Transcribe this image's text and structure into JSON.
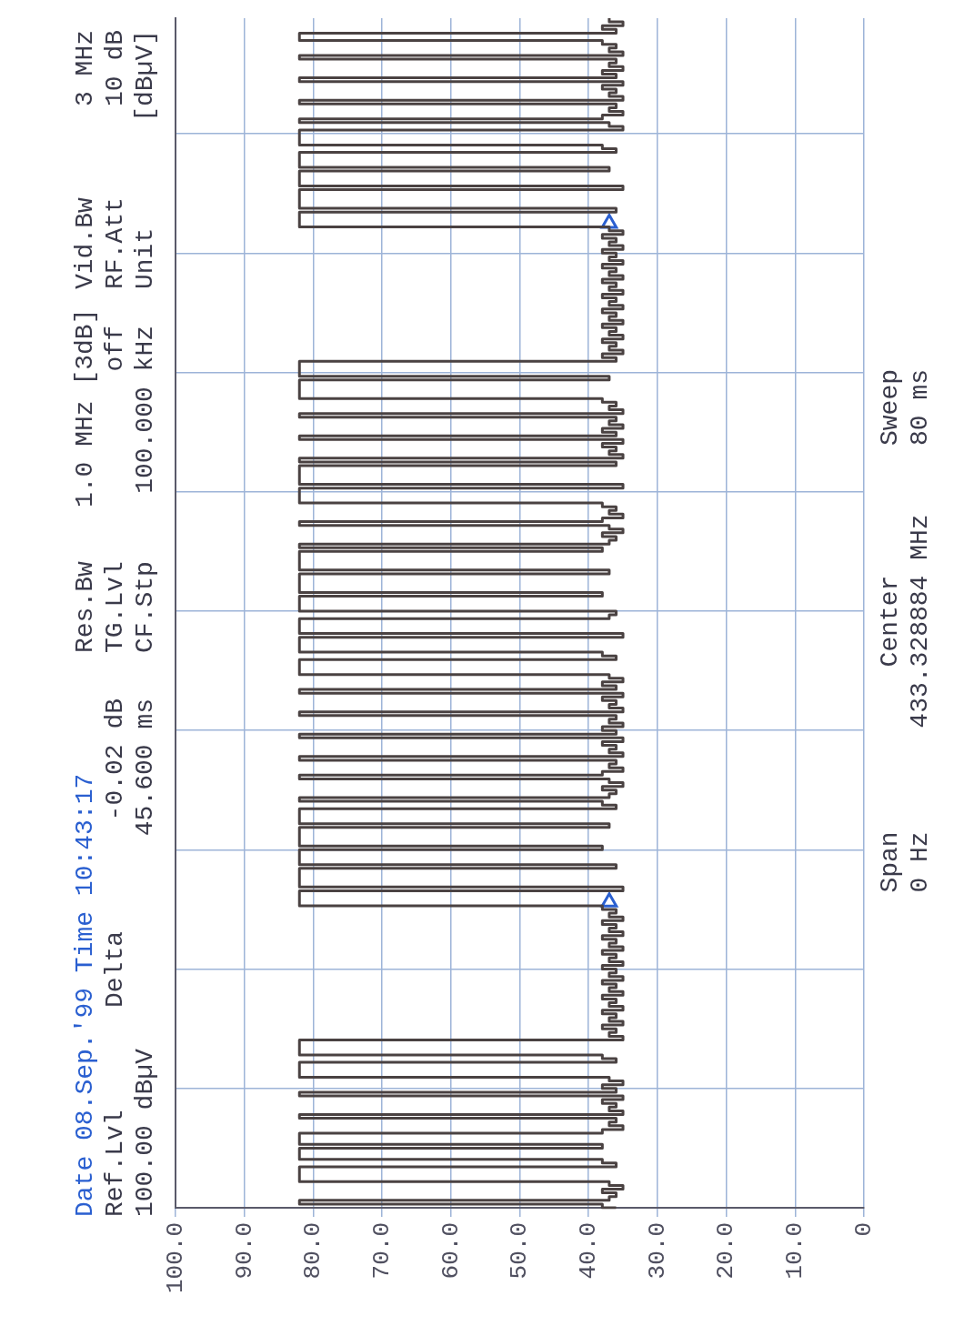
{
  "chart_data": {
    "type": "step",
    "annotations": [
      "Date 08.Sep.'99  Time 10:43:17",
      "Ref.Lvl",
      "100.00 dBµV",
      "Delta",
      "-0.02 dB",
      "45.600 ms",
      "Res.Bw",
      "1.0 MHz [3dB]",
      "TG.Lvl",
      "off",
      "CF.Stp",
      "100.000 kHz",
      "Vid.Bw",
      "3 MHz",
      "RF.Att",
      "10 dB",
      "Unit",
      "[dBµV]",
      "Span",
      "0 Hz",
      "Center",
      "433.328884 MHz",
      "Sweep",
      "80 ms"
    ],
    "orientation": "horizontal",
    "categories": [
      null,
      null,
      null,
      null,
      null,
      null,
      null,
      null,
      null,
      null,
      null,
      null,
      null,
      null,
      null,
      null,
      null,
      null,
      null,
      null,
      null,
      null,
      null,
      null,
      null,
      null,
      null,
      null,
      null,
      null,
      null,
      null,
      null,
      null,
      null,
      null,
      null,
      null,
      null,
      null,
      null,
      null,
      null,
      null,
      null,
      null,
      null,
      null,
      null,
      null,
      null,
      null,
      null,
      null,
      null,
      null,
      null,
      null,
      null,
      null,
      null,
      null,
      null,
      null,
      null,
      null,
      null,
      null,
      null,
      null,
      null,
      null,
      null,
      null,
      null,
      null,
      null,
      null,
      null,
      null,
      null,
      null,
      null,
      null,
      null,
      null,
      null,
      null,
      null,
      null,
      null,
      null,
      null,
      null,
      null,
      null,
      null,
      null,
      null,
      null,
      null,
      null,
      null,
      null,
      null,
      null,
      null,
      null,
      null,
      null,
      null,
      null,
      null,
      null,
      null,
      null,
      null,
      null,
      null,
      null,
      null,
      null,
      null,
      null,
      null,
      null,
      null,
      null,
      null,
      null,
      null,
      null,
      null,
      null,
      null,
      null,
      null,
      null,
      null,
      null,
      null,
      null,
      null,
      null,
      null,
      null,
      null,
      null,
      null,
      null,
      null,
      null,
      null,
      null,
      null,
      null,
      null,
      null,
      null,
      null,
      null,
      null,
      null,
      null,
      null,
      null,
      null,
      null,
      null,
      null,
      null,
      null,
      null,
      null,
      null,
      null,
      null,
      null,
      null,
      null,
      null,
      null,
      null,
      null,
      null,
      null,
      null,
      null,
      null,
      null,
      null,
      null,
      null,
      null,
      null,
      null,
      null,
      null,
      null,
      null,
      null,
      null,
      null,
      null,
      null,
      null,
      null,
      null,
      null,
      null,
      null,
      null,
      null,
      null,
      null,
      null,
      null,
      null,
      null,
      null,
      null,
      null,
      null,
      null,
      null,
      null,
      null,
      null,
      null,
      null,
      null,
      null,
      null,
      null,
      null,
      null,
      null,
      null,
      null,
      null,
      null,
      null,
      null,
      null,
      null,
      null,
      null,
      null,
      null,
      null,
      null,
      null,
      null,
      null,
      null,
      null,
      null,
      null,
      null,
      null,
      null,
      null,
      null,
      null,
      null,
      null,
      null,
      null,
      null,
      null,
      null,
      null,
      null,
      null,
      null,
      null,
      null,
      null,
      null,
      null,
      null,
      null,
      null,
      null,
      null,
      null,
      null,
      null,
      null,
      null,
      null,
      null,
      null,
      null,
      null,
      null,
      null,
      null,
      null,
      null,
      null,
      null,
      null,
      null,
      null,
      null,
      null,
      null,
      null,
      null,
      null,
      null,
      null,
      null,
      null,
      null,
      null,
      null,
      null,
      null
    ],
    "xlim": [
      100,
      0
    ],
    "xticks": [
      {
        "value": 100,
        "label": "100.0"
      },
      {
        "value": 90,
        "label": "90.0"
      },
      {
        "value": 80,
        "label": "80.0"
      },
      {
        "value": 70,
        "label": "70.0"
      },
      {
        "value": 60,
        "label": "60.0"
      },
      {
        "value": 50,
        "label": "50.0"
      },
      {
        "value": 40,
        "label": "40.0"
      },
      {
        "value": 30,
        "label": "30.0"
      },
      {
        "value": 20,
        "label": "20.0"
      },
      {
        "value": 10,
        "label": "10.0"
      },
      {
        "value": 0,
        "label": "0"
      }
    ],
    "tick_labels": "x",
    "grid": true,
    "series": [
      {
        "type": "step",
        "color": "#4a4242",
        "values": [
          37,
          35,
          38,
          36,
          82,
          82,
          38,
          36,
          37,
          35,
          82,
          36,
          37,
          35,
          38,
          36,
          82,
          35,
          38,
          36,
          37,
          35,
          82,
          36,
          37,
          35,
          38,
          82,
          37,
          35,
          82,
          82,
          82,
          82,
          38,
          36,
          82,
          82,
          82,
          82,
          37,
          82,
          82,
          82,
          82,
          35,
          82,
          82,
          82,
          82,
          82,
          36,
          82,
          82,
          82,
          82,
          37,
          35,
          38,
          36,
          37,
          35,
          38,
          36,
          37,
          35,
          38,
          36,
          37,
          35,
          38,
          36,
          37,
          35,
          38,
          36,
          37,
          35,
          38,
          36,
          37,
          35,
          38,
          36,
          37,
          35,
          38,
          36,
          37,
          35,
          38,
          36,
          82,
          82,
          82,
          82,
          37,
          82,
          82,
          82,
          82,
          82,
          38,
          36,
          37,
          35,
          82,
          36,
          37,
          35,
          38,
          36,
          82,
          35,
          38,
          36,
          37,
          35,
          82,
          36,
          82,
          82,
          82,
          82,
          82,
          35,
          82,
          82,
          82,
          82,
          38,
          36,
          37,
          35,
          38,
          82,
          37,
          35,
          38,
          36,
          37,
          82,
          38,
          82,
          82,
          82,
          82,
          82,
          37,
          82,
          82,
          82,
          82,
          82,
          38,
          82,
          82,
          82,
          82,
          36,
          37,
          82,
          82,
          82,
          82,
          35,
          82,
          82,
          82,
          82,
          38,
          36,
          82,
          82,
          82,
          82,
          37,
          35,
          38,
          36,
          82,
          35,
          38,
          36,
          37,
          35,
          82,
          36,
          37,
          35,
          38,
          36,
          82,
          35,
          38,
          36,
          37,
          35,
          82,
          36,
          37,
          35,
          38,
          82,
          37,
          35,
          38,
          36,
          37,
          82,
          38,
          36,
          82,
          82,
          82,
          82,
          37,
          82,
          82,
          82,
          82,
          82,
          38,
          82,
          82,
          82,
          82,
          36,
          82,
          82,
          82,
          82,
          82,
          35,
          82,
          82,
          82,
          82,
          38,
          36,
          37,
          35,
          38,
          36,
          37,
          35,
          38,
          36,
          37,
          35,
          38,
          36,
          37,
          35,
          38,
          36,
          37,
          35,
          38,
          36,
          37,
          35,
          38,
          36,
          37,
          35,
          38,
          36,
          37,
          35,
          38,
          36,
          37,
          35,
          82,
          82,
          82,
          82,
          38,
          36,
          82,
          82,
          82,
          82,
          37,
          35,
          38,
          36,
          82,
          35,
          38,
          36,
          37,
          35,
          82,
          36,
          37,
          35,
          38,
          82,
          82,
          82,
          38,
          82,
          82,
          82,
          38,
          36,
          82,
          82,
          82,
          82,
          37,
          35,
          38,
          36,
          37,
          82,
          38,
          36
        ]
      },
      {
        "type": "scatter",
        "color": "#2a5fd0",
        "marker": "triangle",
        "values": [
          null,
          null,
          null,
          null,
          null,
          null,
          null,
          null,
          null,
          null,
          null,
          null,
          null,
          null,
          null,
          null,
          null,
          null,
          null,
          null,
          null,
          null,
          null,
          null,
          null,
          null,
          null,
          null,
          null,
          null,
          null,
          null,
          null,
          null,
          null,
          null,
          null,
          null,
          null,
          null,
          null,
          null,
          null,
          null,
          null,
          null,
          null,
          null,
          null,
          null,
          null,
          null,
          null,
          null,
          null,
          37,
          null,
          null,
          null,
          null,
          null,
          null,
          null,
          null,
          null,
          null,
          null,
          null,
          null,
          null,
          null,
          null,
          null,
          null,
          null,
          null,
          null,
          null,
          null,
          null,
          null,
          null,
          null,
          null,
          null,
          null,
          null,
          null,
          null,
          null,
          null,
          null,
          null,
          null,
          null,
          null,
          null,
          null,
          null,
          null,
          null,
          null,
          null,
          null,
          null,
          null,
          null,
          null,
          null,
          null,
          null,
          null,
          null,
          null,
          null,
          null,
          null,
          null,
          null,
          null,
          null,
          null,
          null,
          null,
          null,
          null,
          null,
          null,
          null,
          null,
          null,
          null,
          null,
          null,
          null,
          null,
          null,
          null,
          null,
          null,
          null,
          null,
          null,
          null,
          null,
          null,
          null,
          null,
          null,
          null,
          null,
          null,
          null,
          null,
          null,
          null,
          null,
          null,
          null,
          null,
          null,
          null,
          null,
          null,
          null,
          null,
          null,
          null,
          null,
          null,
          null,
          null,
          null,
          null,
          null,
          null,
          null,
          null,
          null,
          null,
          null,
          null,
          null,
          null,
          null,
          null,
          null,
          null,
          null,
          null,
          null,
          null,
          null,
          null,
          null,
          null,
          null,
          null,
          null,
          null,
          null,
          null,
          null,
          null,
          null,
          null,
          null,
          null,
          null,
          null,
          null,
          null,
          null,
          null,
          null,
          null,
          null,
          null,
          null,
          null,
          null,
          null,
          null,
          null,
          null,
          null,
          null,
          null,
          null,
          null,
          null,
          null,
          null,
          null,
          null,
          null,
          null,
          37,
          null,
          null,
          null,
          null,
          null,
          null,
          null,
          null,
          null,
          null,
          null,
          null,
          null,
          null,
          null,
          null,
          null,
          null,
          null,
          null,
          null,
          null,
          null,
          null,
          null,
          null,
          null,
          null,
          null,
          null,
          null,
          null,
          null,
          null,
          null,
          null,
          null,
          null,
          null,
          null,
          null,
          null,
          null,
          null,
          null,
          null,
          null,
          null,
          null,
          null,
          null,
          null,
          null,
          null,
          null,
          null,
          null,
          null,
          null,
          null,
          null,
          null,
          null,
          null,
          null,
          null,
          null,
          null,
          null,
          null,
          null,
          null,
          null,
          null,
          null,
          null,
          null,
          null,
          null,
          null,
          null,
          null
        ]
      }
    ]
  }
}
